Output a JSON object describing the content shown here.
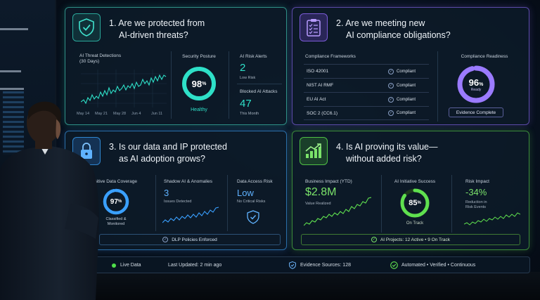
{
  "panel1": {
    "title_line1": "1.  Are we protected from",
    "title_line2": "AI-driven threats?",
    "detections_label_line1": "AI Threat Detections",
    "detections_label_line2": "(30 Days)",
    "x_ticks": [
      "May 14",
      "May 21",
      "May 28",
      "Jun 4",
      "Jun 11"
    ],
    "posture_label": "Security Posture",
    "posture_value": "98",
    "posture_unit": "%",
    "posture_fraction": 0.98,
    "posture_status": "Healthy",
    "risk_alerts_label": "AI Risk Alerts",
    "risk_alerts_value": "2",
    "risk_alerts_sub": "Low Risk",
    "blocked_label": "Blocked AI Attacks",
    "blocked_value": "47",
    "blocked_sub": "This Month"
  },
  "panel2": {
    "title_line1": "2.  Are we meeting new",
    "title_line2": "AI compliance obligations?",
    "frameworks_label": "Compliance Frameworks",
    "frameworks": [
      {
        "name": "ISO 42001",
        "status": "Compliant"
      },
      {
        "name": "NIST AI RMF",
        "status": "Compliant"
      },
      {
        "name": "EU AI Act",
        "status": "Compliant"
      },
      {
        "name": "SOC 2 (CC6.1)",
        "status": "Compliant"
      }
    ],
    "readiness_label": "Compliance Readiness",
    "readiness_value": "96",
    "readiness_unit": "%",
    "readiness_fraction": 0.96,
    "readiness_sub": "Ready",
    "evidence_button": "Evidence Complete"
  },
  "panel3": {
    "title_line1": "3.  Is our data and IP protected",
    "title_line2": "as AI adoption grows?",
    "coverage_label": "Sensitive Data Coverage",
    "coverage_value": "97",
    "coverage_unit": "%",
    "coverage_fraction": 0.97,
    "coverage_sub_line1": "Classified &",
    "coverage_sub_line2": "Monitored",
    "shadow_label": "Shadow AI & Anomalies",
    "shadow_value": "3",
    "shadow_sub": "Issues Detected",
    "access_label": "Data Access Risk",
    "access_value": "Low",
    "access_sub": "No Critical Risks",
    "dlp_button": "DLP Policies Enforced"
  },
  "panel4": {
    "title_line1": "4.  Is AI proving its value—",
    "title_line2": "without added risk?",
    "impact_label": "Business Impact (YTD)",
    "impact_value": "$2.8M",
    "impact_sub": "Value Realized",
    "success_label": "AI Initiative Success",
    "success_value": "85",
    "success_unit": "%",
    "success_fraction": 0.85,
    "success_sub": "On Track",
    "risk_label": "Risk Impact",
    "risk_value": "-34%",
    "risk_sub_line1": "Reduction in",
    "risk_sub_line2": "Risk Events",
    "projects_text": "AI Projects: 12 Active  •  9 On Track"
  },
  "footer": {
    "live": "Live Data",
    "updated": "Last Updated: 2 min ago",
    "sources": "Evidence Sources: 128",
    "mode": "Automated  •  Verified  •  Continuous"
  },
  "colors": {
    "teal": "#2ee0c8",
    "purple": "#9b7bff",
    "blue": "#3aa0ff",
    "green": "#5fe04f"
  }
}
